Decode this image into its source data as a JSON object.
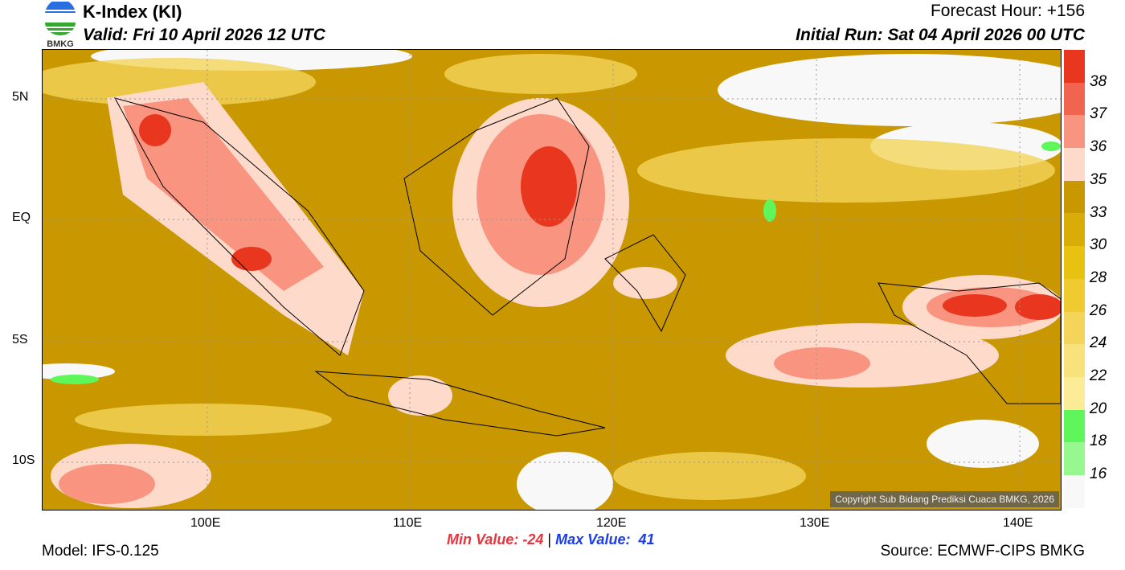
{
  "header": {
    "title": "K-Index (KI)",
    "valid": "Valid: Fri 10 April 2026 12 UTC",
    "forecast_hour": "Forecast Hour: +156",
    "initial_run": "Initial Run: Sat 04 April 2026 00 UTC",
    "logo_text": "BMKG"
  },
  "axes": {
    "lat": [
      "5N",
      "EQ",
      "5S",
      "10S"
    ],
    "lon": [
      "100E",
      "110E",
      "120E",
      "130E",
      "140E"
    ]
  },
  "legend": {
    "labels": [
      "38",
      "37",
      "36",
      "35",
      "33",
      "30",
      "28",
      "26",
      "24",
      "22",
      "20",
      "18",
      "16"
    ],
    "colors": [
      "#e8361f",
      "#f06450",
      "#f89480",
      "#fedacb",
      "#c99800",
      "#daac08",
      "#e8c210",
      "#efcb30",
      "#f4d55a",
      "#f8e27c",
      "#fcec98",
      "#5ef65a",
      "#98f890",
      "#f8f8f8"
    ]
  },
  "stats": {
    "min_label": "Min Value: -24",
    "separator": "|",
    "max_label": "Max Value:  41",
    "min_color": "#e8343c",
    "max_color": "#1a3cf0"
  },
  "footer": {
    "model": "Model: IFS-0.125",
    "source": "Source: ECMWF-CIPS BMKG",
    "copyright": "Copyright Sub Bidang Prediksi Cuaca BMKG, 2026"
  }
}
